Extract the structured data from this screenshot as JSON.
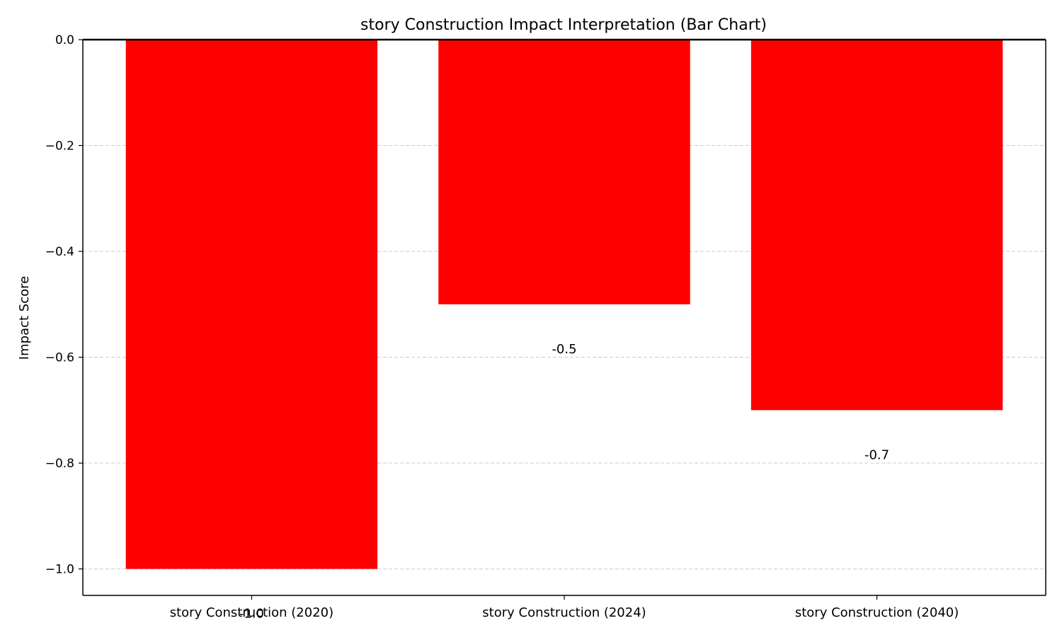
{
  "chart_data": {
    "type": "bar",
    "title": "story Construction Impact Interpretation (Bar Chart)",
    "xlabel": "",
    "ylabel": "Impact Score",
    "categories": [
      "story Construction (2020)",
      "story Construction (2024)",
      "story Construction (2040)"
    ],
    "values": [
      -1.0,
      -0.5,
      -0.7
    ],
    "data_labels": [
      "-1.0",
      "-0.5",
      "-0.7"
    ],
    "ylim": [
      -1.05,
      0.0
    ],
    "yticks": [
      0.0,
      -0.2,
      -0.4,
      -0.6,
      -0.8,
      -1.0
    ],
    "ytick_labels": [
      "0.0",
      "−0.2",
      "−0.4",
      "−0.6",
      "−0.8",
      "−1.0"
    ],
    "grid": "horizontal dashed",
    "legend": "none",
    "bar_color": "#ff0000",
    "grid_color": "#cccccc"
  }
}
